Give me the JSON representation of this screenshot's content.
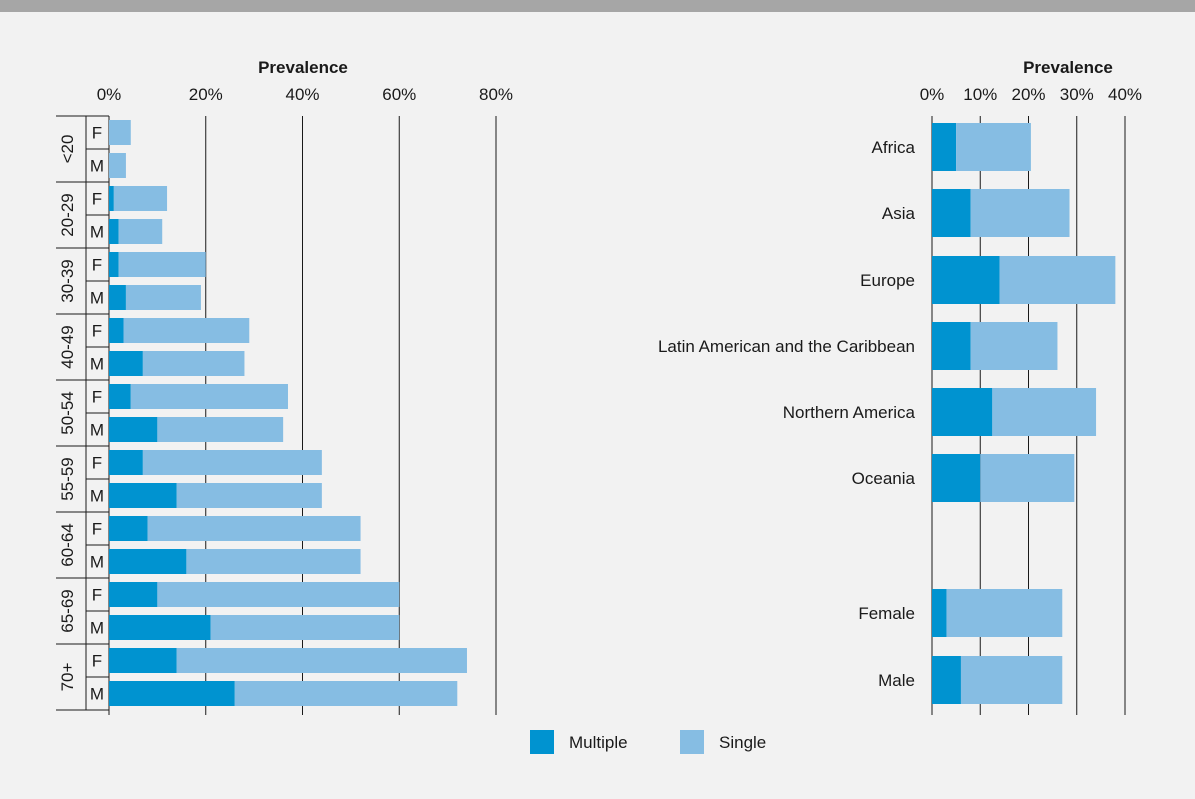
{
  "colors": {
    "multiple": "#0093d0",
    "single": "#86bde3",
    "grid": "#1a1a1a",
    "background": "#f2f2f2",
    "top_bar": "#a6a6a6"
  },
  "legend": {
    "multiple": "Multiple",
    "single": "Single"
  },
  "chart_data": [
    {
      "type": "bar",
      "orientation": "horizontal",
      "stacked": true,
      "title": "",
      "xlabel": "Prevalence",
      "ylabel": "",
      "xlim": [
        0,
        80
      ],
      "x_ticks": [
        "0%",
        "20%",
        "40%",
        "60%",
        "80%"
      ],
      "grid": true,
      "age_groups": [
        "<20",
        "20-29",
        "30-39",
        "40-49",
        "50-54",
        "55-59",
        "60-64",
        "65-69",
        "70+"
      ],
      "sexes": [
        "F",
        "M"
      ],
      "categories": [
        "<20 F",
        "<20 M",
        "20-29 F",
        "20-29 M",
        "30-39 F",
        "30-39 M",
        "40-49 F",
        "40-49 M",
        "50-54 F",
        "50-54 M",
        "55-59 F",
        "55-59 M",
        "60-64 F",
        "60-64 M",
        "65-69 F",
        "65-69 M",
        "70+ F",
        "70+ M"
      ],
      "series": [
        {
          "name": "Multiple",
          "values": [
            0,
            0,
            1,
            2,
            2,
            3.5,
            3,
            7,
            4.5,
            10,
            7,
            14,
            8,
            16,
            10,
            21,
            14,
            26
          ]
        },
        {
          "name": "Single",
          "values": [
            4.5,
            3.5,
            11,
            9,
            18,
            15.5,
            26,
            21,
            32.5,
            26,
            37,
            30,
            44,
            36,
            50,
            39,
            60,
            46
          ]
        }
      ],
      "legend_position": "bottom"
    },
    {
      "type": "bar",
      "orientation": "horizontal",
      "stacked": true,
      "title": "",
      "xlabel": "Prevalence",
      "ylabel": "",
      "xlim": [
        0,
        40
      ],
      "x_ticks": [
        "0%",
        "10%",
        "20%",
        "30%",
        "40%"
      ],
      "grid": true,
      "categories": [
        "Africa",
        "Asia",
        "Europe",
        "Latin American and the Caribbean",
        "Northern America",
        "Oceania",
        "Female",
        "Male"
      ],
      "series": [
        {
          "name": "Multiple",
          "values": [
            5,
            8,
            14,
            8,
            12.5,
            10,
            3,
            6
          ]
        },
        {
          "name": "Single",
          "values": [
            15.5,
            20.5,
            24,
            18,
            21.5,
            19.5,
            24,
            21
          ]
        }
      ],
      "legend_position": "bottom"
    }
  ]
}
